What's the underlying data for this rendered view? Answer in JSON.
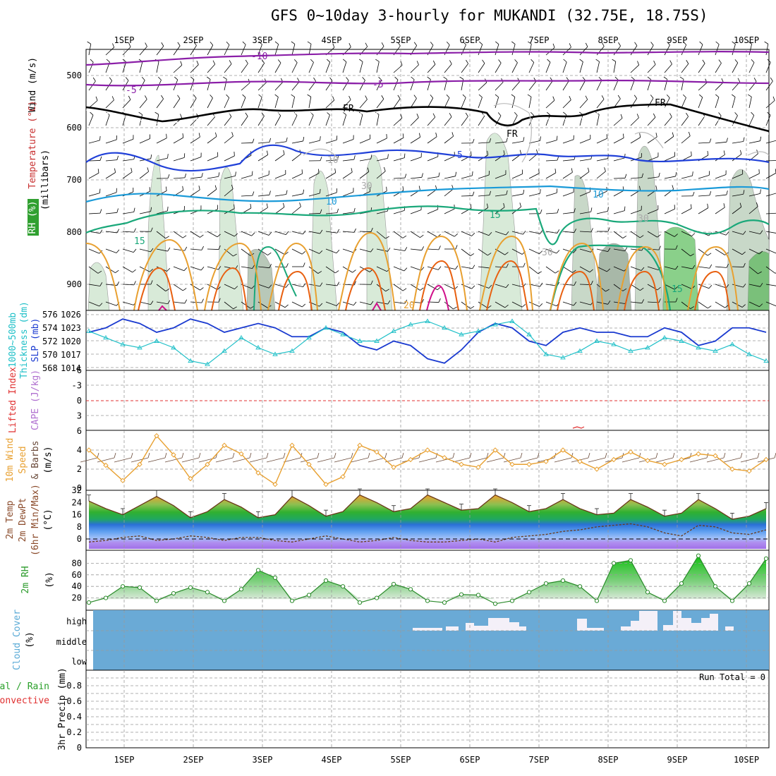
{
  "title": "GFS 0~10day 3-hourly for MUKANDI (32.75E, 18.75S)",
  "days": [
    "1SEP",
    "2SEP",
    "3SEP",
    "4SEP",
    "5SEP",
    "6SEP",
    "7SEP",
    "8SEP",
    "9SEP",
    "10SEP"
  ],
  "colors": {
    "purple": "#8b1fa8",
    "black": "#000000",
    "blue": "#2040d8",
    "lightblue": "#1a9ad8",
    "teal": "#1aa87a",
    "orange": "#e8a030",
    "darkorange": "#e86010",
    "magenta": "#d0108a",
    "slp": "#1a3ad0",
    "thick": "#20c0c8",
    "rhgreen": "#2a9a2a",
    "cloud": "#6aaad6",
    "temp": "#8a4a2a"
  },
  "panels": {
    "upper": {
      "ylabels": [
        "Wind (m/s)",
        "Temperature (°C)",
        "(millibars)",
        "RH (%)"
      ],
      "yticks": [
        "500",
        "600",
        "700",
        "800",
        "900"
      ],
      "contour_labels": [
        "-10",
        "-5",
        "-5",
        "FR",
        "FR",
        "FR",
        "5",
        "5",
        "10",
        "10",
        "15",
        "15",
        "15",
        "20",
        "30",
        "30",
        "30",
        "10"
      ]
    },
    "slp": {
      "ylabels": [
        "1000~500mb",
        "Thickness (dm)",
        "SLP (mb)"
      ],
      "thick_ticks": [
        "576",
        "574",
        "572",
        "570",
        "568"
      ],
      "slp_ticks": [
        "1026",
        "1023",
        "1020",
        "1017",
        "1014"
      ]
    },
    "cape": {
      "ylabels": [
        "Lifted Index",
        "CAPE (J/kg)"
      ],
      "ticks": [
        "-6",
        "-3",
        "0",
        "3",
        "6"
      ]
    },
    "wind10": {
      "ylabels": [
        "10m Wind",
        "Speed",
        "& Barbs",
        "(m/s)"
      ],
      "ticks": [
        "4",
        "2",
        "0"
      ]
    },
    "temp2m": {
      "ylabels": [
        "2m Temp",
        "2m DewPt",
        "(6hr Min/Max)",
        "(°C)"
      ],
      "ticks": [
        "32",
        "24",
        "16",
        "8",
        "0"
      ]
    },
    "rh2m": {
      "ylabels": [
        "2m RH",
        "(%)"
      ],
      "ticks": [
        "80",
        "60",
        "40",
        "20"
      ]
    },
    "cloud": {
      "ylabels": [
        "Cloud Cover",
        "(%)"
      ],
      "levels": [
        "high",
        "middle",
        "low"
      ]
    },
    "precip": {
      "ylabels": [
        "Total / Rain",
        "Convective",
        "3hr Precip (mm)"
      ],
      "ticks": [
        "0.8",
        "0.6",
        "0.4",
        "0.2",
        "0"
      ],
      "run_total": "Run Total = 0"
    }
  },
  "chart_data": {
    "type": "line",
    "x": [
      "08-31 12",
      "08-31 18",
      "09-01 00",
      "09-01 06",
      "09-01 12",
      "09-01 18",
      "09-02 00",
      "09-02 06",
      "09-02 12",
      "09-02 18",
      "09-03 00",
      "09-03 06",
      "09-03 12",
      "09-03 18",
      "09-04 00",
      "09-04 06",
      "09-04 12",
      "09-04 18",
      "09-05 00",
      "09-05 06",
      "09-05 12",
      "09-05 18",
      "09-06 00",
      "09-06 06",
      "09-06 12",
      "09-06 18",
      "09-07 00",
      "09-07 06",
      "09-07 12",
      "09-07 18",
      "09-08 00",
      "09-08 06",
      "09-08 12",
      "09-08 18",
      "09-09 00",
      "09-09 06",
      "09-09 12",
      "09-09 18",
      "09-10 00",
      "09-10 06",
      "09-10 12"
    ],
    "series": [
      {
        "name": "SLP (mb)",
        "values": [
          1022,
          1023,
          1025,
          1024,
          1022,
          1023,
          1025,
          1024,
          1022,
          1023,
          1024,
          1023,
          1021,
          1021,
          1023,
          1022,
          1019,
          1018,
          1020,
          1019,
          1016,
          1015,
          1018,
          1022,
          1024,
          1023,
          1020,
          1019,
          1022,
          1023,
          1022,
          1022,
          1021,
          1021,
          1023,
          1022,
          1019,
          1020,
          1023,
          1023,
          1022
        ]
      },
      {
        "name": "1000~500mb Thickness (dm)",
        "values": [
          573.5,
          572.5,
          571.5,
          571,
          572,
          571,
          569,
          568.5,
          570.5,
          572.5,
          571,
          570,
          570.5,
          572.5,
          574,
          573,
          572,
          572,
          573.5,
          574.5,
          575,
          574,
          573,
          573.5,
          574.5,
          575,
          573,
          570,
          569.5,
          570.5,
          572,
          571.5,
          570.5,
          571,
          572.5,
          572,
          571,
          570.5,
          571.5,
          570,
          569
        ]
      },
      {
        "name": "10m Wind Speed (m/s)",
        "values": [
          4.0,
          2.4,
          0.8,
          2.5,
          5.5,
          3.5,
          1.0,
          2.5,
          4.5,
          3.6,
          1.6,
          0.4,
          4.5,
          2.5,
          0.4,
          1.2,
          4.5,
          3.8,
          2.2,
          3.0,
          4.0,
          3.2,
          2.5,
          2.2,
          4.0,
          2.5,
          2.5,
          2.8,
          4.0,
          2.8,
          2.0,
          3.0,
          3.8,
          2.9,
          2.5,
          3.0,
          3.6,
          3.4,
          2.0,
          1.8,
          3.0
        ]
      },
      {
        "name": "2m Temp (°C)",
        "values": [
          25,
          20,
          16,
          22,
          28,
          22,
          14,
          18,
          26,
          21,
          14,
          16,
          28,
          22,
          15,
          18,
          29,
          24,
          18,
          20,
          29,
          24,
          19,
          20,
          29,
          24,
          18,
          20,
          26,
          20,
          16,
          17,
          26,
          21,
          15,
          17,
          26,
          20,
          13,
          15,
          20
        ]
      },
      {
        "name": "2m DewPt (°C)",
        "values": [
          -2,
          -1,
          1,
          2,
          -1,
          0,
          2,
          1,
          -1,
          1,
          1,
          -1,
          -2,
          0,
          2,
          0,
          -2,
          -1,
          1,
          -1,
          -2,
          -2,
          -1,
          0,
          -2,
          1,
          2,
          3,
          5,
          6,
          8,
          9,
          10,
          8,
          4,
          2,
          9,
          8,
          4,
          3,
          6
        ]
      },
      {
        "name": "2m RH (%)",
        "values": [
          12,
          20,
          40,
          38,
          15,
          28,
          38,
          30,
          15,
          35,
          68,
          55,
          15,
          25,
          50,
          40,
          12,
          20,
          44,
          35,
          15,
          12,
          26,
          25,
          10,
          15,
          30,
          45,
          50,
          40,
          15,
          80,
          85,
          30,
          15,
          45,
          93,
          40,
          15,
          45,
          88
        ]
      }
    ],
    "ylim": {
      "slp": [
        1014,
        1026
      ],
      "thickness": [
        568,
        576
      ],
      "wind10": [
        0,
        6
      ],
      "temp2m": [
        -4,
        32
      ],
      "rh2m": [
        0,
        100
      ]
    }
  }
}
